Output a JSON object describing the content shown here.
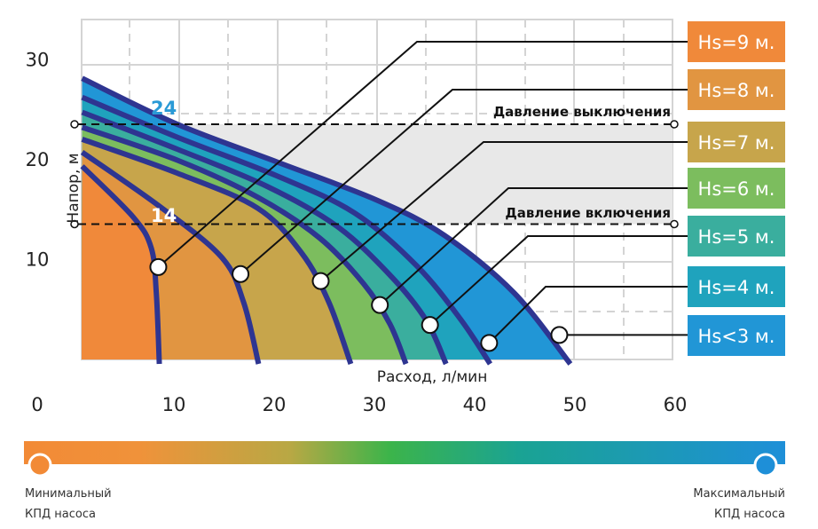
{
  "chart_data": {
    "type": "line",
    "title": "",
    "xlabel": "Расход, л/мин",
    "ylabel": "Напор, м",
    "xlim": [
      0,
      60
    ],
    "ylim": [
      0,
      34
    ],
    "x_ticks": [
      "0",
      "10",
      "20",
      "30",
      "40",
      "50",
      "60"
    ],
    "x_tick_values": [
      0,
      10,
      20,
      30,
      40,
      50,
      60
    ],
    "y_ticks": [
      "10",
      "20",
      "30"
    ],
    "y_tick_values": [
      10,
      20,
      30
    ],
    "grid": true,
    "legend_position": "right",
    "series": [
      {
        "name": "Hs<3 м.",
        "color": "#2196d6",
        "points": [
          [
            1.2,
            28.6
          ],
          [
            10.7,
            24.0
          ],
          [
            20.7,
            20.2
          ],
          [
            30.6,
            16.4
          ],
          [
            37.3,
            12.9
          ],
          [
            44.3,
            7.1
          ],
          [
            49.9,
            0
          ]
        ],
        "marker": [
          48.8,
          2.9
        ]
      },
      {
        "name": "Hs=4 м.",
        "color": "#1fa3bd",
        "points": [
          [
            1.2,
            26.7
          ],
          [
            10.7,
            22.7
          ],
          [
            20.7,
            18.8
          ],
          [
            28.4,
            15.1
          ],
          [
            34.6,
            9.8
          ],
          [
            39.0,
            4.4
          ],
          [
            41.9,
            0
          ]
        ],
        "marker": [
          41.8,
          2.1
        ]
      },
      {
        "name": "Hs=5 м.",
        "color": "#3aae9e",
        "points": [
          [
            1.2,
            25.2
          ],
          [
            10.7,
            21.5
          ],
          [
            19.6,
            17.8
          ],
          [
            26.6,
            13.8
          ],
          [
            31.9,
            8.9
          ],
          [
            35.5,
            4.4
          ],
          [
            37.5,
            0
          ]
        ],
        "marker": [
          35.9,
          3.9
        ]
      },
      {
        "name": "Hs=6 м.",
        "color": "#7cbd5e",
        "points": [
          [
            1.2,
            23.7
          ],
          [
            10.7,
            20.4
          ],
          [
            18.7,
            16.7
          ],
          [
            24.9,
            12.6
          ],
          [
            29.3,
            8.0
          ],
          [
            31.9,
            4.0
          ],
          [
            33.5,
            0
          ]
        ],
        "marker": [
          30.9,
          5.9
        ]
      },
      {
        "name": "Hs=7 м.",
        "color": "#c7a54b",
        "points": [
          [
            1.2,
            22.5
          ],
          [
            10.7,
            19.1
          ],
          [
            18.7,
            15.6
          ],
          [
            23.1,
            11.1
          ],
          [
            25.8,
            6.2
          ],
          [
            28.0,
            0
          ]
        ],
        "marker": [
          25.0,
          8.3
        ]
      },
      {
        "name": "Hs=8 м.",
        "color": "#e19541",
        "points": [
          [
            1.2,
            21.2
          ],
          [
            8.9,
            15.8
          ],
          [
            15.1,
            10.7
          ],
          [
            17.3,
            6.2
          ],
          [
            18.8,
            0
          ]
        ],
        "marker": [
          17.0,
          9.0
        ]
      },
      {
        "name": "Hs=9 м.",
        "color": "#f0893a",
        "points": [
          [
            1.2,
            19.8
          ],
          [
            6.3,
            14.7
          ],
          [
            8.1,
            11.6
          ],
          [
            8.6,
            7.1
          ],
          [
            8.9,
            0
          ]
        ],
        "marker": [
          8.8,
          9.7
        ]
      }
    ],
    "curve_color": "#2e3591",
    "pressure_off": {
      "value": 24,
      "label": "Давление выключения",
      "value_label": "24",
      "color": "#2a9ad6"
    },
    "pressure_on": {
      "value": 14,
      "label": "Давление включения",
      "value_label": "14",
      "color": "#ffffff"
    },
    "pressure_band_color": "#e8e8e8",
    "efficiency_scale": {
      "min_label_1": "Минимальный",
      "min_label_2": "КПД насоса",
      "max_label_1": "Максимальный",
      "max_label_2": "КПД насоса",
      "min_color": "#f28a36",
      "mid_color": "#3cb44a",
      "max_color": "#1e8fd8"
    }
  }
}
